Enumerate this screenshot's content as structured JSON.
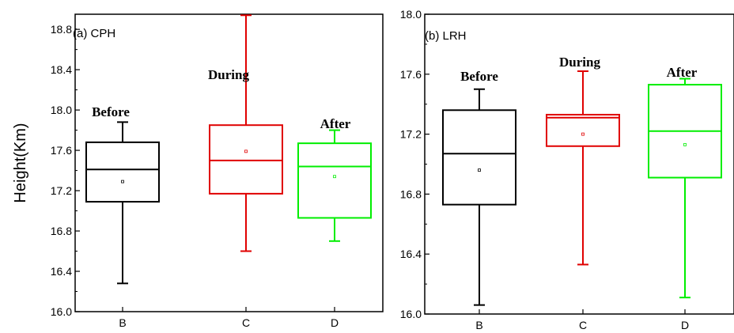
{
  "chart_data": [
    {
      "type": "box",
      "panel_label": "(a) CPH",
      "ylabel": "Height(Km)",
      "ylim": [
        16.0,
        18.95
      ],
      "yticks": [
        "16.0",
        "16.4",
        "16.8",
        "17.2",
        "17.6",
        "18.0",
        "18.4",
        "18.8"
      ],
      "categories": [
        "B",
        "C",
        "D"
      ],
      "annotations": [
        "Before",
        "During",
        "After"
      ],
      "boxes": [
        {
          "category": "B",
          "color": "#000000",
          "whisker_low": 16.28,
          "q1": 17.09,
          "median": 17.41,
          "mean": 17.29,
          "q3": 17.68,
          "whisker_high": 17.88
        },
        {
          "category": "C",
          "color": "#e00000",
          "whisker_low": 16.6,
          "q1": 17.17,
          "median": 17.5,
          "mean": 17.59,
          "q3": 17.85,
          "whisker_high": 18.94
        },
        {
          "category": "D",
          "color": "#00ee00",
          "whisker_low": 16.7,
          "q1": 16.93,
          "median": 17.44,
          "mean": 17.34,
          "q3": 17.67,
          "whisker_high": 17.8
        }
      ]
    },
    {
      "type": "box",
      "panel_label": "(b) LRH",
      "ylabel": "",
      "ylim": [
        16.0,
        18.0
      ],
      "yticks": [
        "16.0",
        "16.4",
        "16.8",
        "17.2",
        "17.6",
        "18.0"
      ],
      "categories": [
        "B",
        "C",
        "D"
      ],
      "annotations": [
        "Before",
        "During",
        "After"
      ],
      "boxes": [
        {
          "category": "B",
          "color": "#000000",
          "whisker_low": 16.06,
          "q1": 16.73,
          "median": 17.07,
          "mean": 16.96,
          "q3": 17.36,
          "whisker_high": 17.5
        },
        {
          "category": "C",
          "color": "#e00000",
          "whisker_low": 16.33,
          "q1": 17.12,
          "median": 17.31,
          "mean": 17.2,
          "q3": 17.33,
          "whisker_high": 17.62
        },
        {
          "category": "D",
          "color": "#00ee00",
          "whisker_low": 16.11,
          "q1": 16.91,
          "median": 17.22,
          "mean": 17.13,
          "q3": 17.53,
          "whisker_high": 17.57
        }
      ]
    }
  ]
}
